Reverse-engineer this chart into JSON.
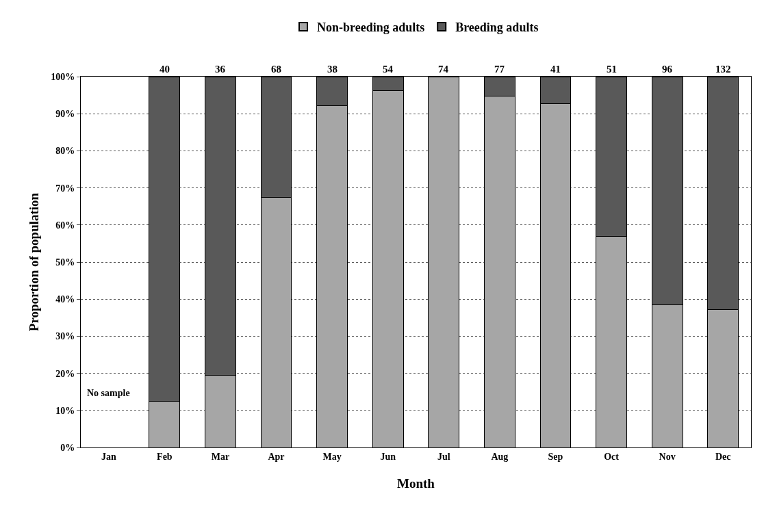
{
  "chart_data": {
    "type": "bar",
    "stacked": true,
    "xlabel": "Month",
    "ylabel": "Proportion of population",
    "categories": [
      "Jan",
      "Feb",
      "Mar",
      "Apr",
      "May",
      "Jun",
      "Jul",
      "Aug",
      "Sep",
      "Oct",
      "Nov",
      "Dec"
    ],
    "series": [
      {
        "name": "Non-breeding adults",
        "color": "#a6a6a6",
        "values": [
          null,
          12.5,
          19.4,
          67.5,
          92.1,
          96.3,
          100,
          94.8,
          92.7,
          56.9,
          38.5,
          37.1
        ]
      },
      {
        "name": "Breeding adults",
        "color": "#595959",
        "values": [
          null,
          87.5,
          80.6,
          32.5,
          7.9,
          3.7,
          null,
          5.2,
          7.3,
          43.1,
          61.5,
          62.9
        ]
      }
    ],
    "ylim": [
      0,
      100
    ],
    "yticks": [
      {
        "value": 0,
        "label": "0%"
      },
      {
        "value": 10,
        "label": "10%"
      },
      {
        "value": 20,
        "label": "20%"
      },
      {
        "value": 30,
        "label": "30%"
      },
      {
        "value": 40,
        "label": "40%"
      },
      {
        "value": 50,
        "label": "50%"
      },
      {
        "value": 60,
        "label": "60%"
      },
      {
        "value": 70,
        "label": "70%"
      },
      {
        "value": 80,
        "label": "80%"
      },
      {
        "value": 90,
        "label": "90%"
      },
      {
        "value": 100,
        "label": "100%"
      }
    ],
    "annotations": [
      "No sample",
      {
        "text": "40",
        "x": "Feb",
        "y": 100
      },
      {
        "text": "36",
        "x": "Mar",
        "y": 100
      },
      {
        "text": "68",
        "x": "Apr",
        "y": 100
      },
      {
        "text": "38",
        "x": "May",
        "y": 100
      },
      {
        "text": "54",
        "x": "Jun",
        "y": 100
      },
      {
        "text": "74",
        "x": "Jul",
        "y": 100
      },
      {
        "text": "77",
        "x": "Aug",
        "y": 100
      },
      {
        "text": "41",
        "x": "Sep",
        "y": 100
      },
      {
        "text": "51",
        "x": "Oct",
        "y": 100
      },
      {
        "text": "96",
        "x": "Nov",
        "y": 100
      },
      {
        "text": "132",
        "x": "Dec",
        "y": 100
      }
    ],
    "grid": "y",
    "legend": "top"
  }
}
